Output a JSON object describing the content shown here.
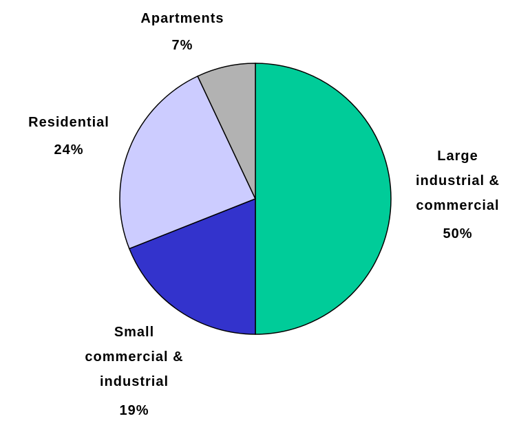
{
  "chart_data": {
    "type": "pie",
    "categories": [
      "Large industrial & commercial",
      "Small commercial & industrial",
      "Residential",
      "Apartments"
    ],
    "values": [
      50,
      19,
      24,
      7
    ],
    "value_labels": [
      "50%",
      "19%",
      "24%",
      "7%"
    ],
    "colors": [
      "#00cc99",
      "#3333cc",
      "#ccccff",
      "#b2b2b2"
    ]
  }
}
